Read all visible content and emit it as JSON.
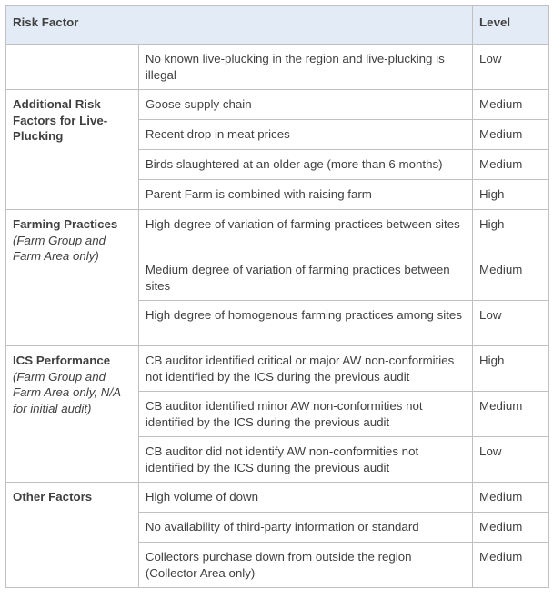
{
  "header": {
    "risk_factor": "Risk Factor",
    "level": "Level"
  },
  "groups": [
    {
      "name": "",
      "note": "",
      "rows": [
        {
          "factor": "No known live-plucking in the region and live-plucking is illegal",
          "level": "Low"
        }
      ]
    },
    {
      "name": "Additional Risk Factors for Live-Plucking",
      "note": "",
      "rows": [
        {
          "factor": "Goose supply chain",
          "level": "Medium"
        },
        {
          "factor": "Recent drop in meat prices",
          "level": "Medium"
        },
        {
          "factor": "Birds slaughtered at an older age (more than 6 months)",
          "level": "Medium"
        },
        {
          "factor": "Parent Farm is combined with raising farm",
          "level": "High"
        }
      ]
    },
    {
      "name": "Farming Practices",
      "note": "(Farm Group and Farm Area only)",
      "rows": [
        {
          "factor": "High degree of variation of farming practices between sites",
          "level": "High"
        },
        {
          "factor": "Medium degree of variation of farming practices between sites",
          "level": "Medium"
        },
        {
          "factor": "High degree of homogenous farming practices among sites",
          "level": "Low"
        }
      ]
    },
    {
      "name": "ICS Performance",
      "note": "(Farm Group and Farm Area only, N/A for initial audit)",
      "rows": [
        {
          "factor": "CB auditor identified critical or major AW non-conformities not identified by the ICS during the previous audit",
          "level": "High"
        },
        {
          "factor": "CB auditor identified minor AW non-conformities not identified by the ICS during the previous audit",
          "level": "Medium"
        },
        {
          "factor": "CB auditor did not identify AW non-conformities not identified by the ICS during the previous audit",
          "level": "Low"
        }
      ]
    },
    {
      "name": "Other Factors",
      "note": "",
      "rows": [
        {
          "factor": "High volume of down",
          "level": "Medium"
        },
        {
          "factor": "No availability of third-party information or standard",
          "level": "Medium"
        },
        {
          "factor": "Collectors purchase down from outside the region (Collector Area only)",
          "level": "Medium"
        }
      ]
    }
  ]
}
